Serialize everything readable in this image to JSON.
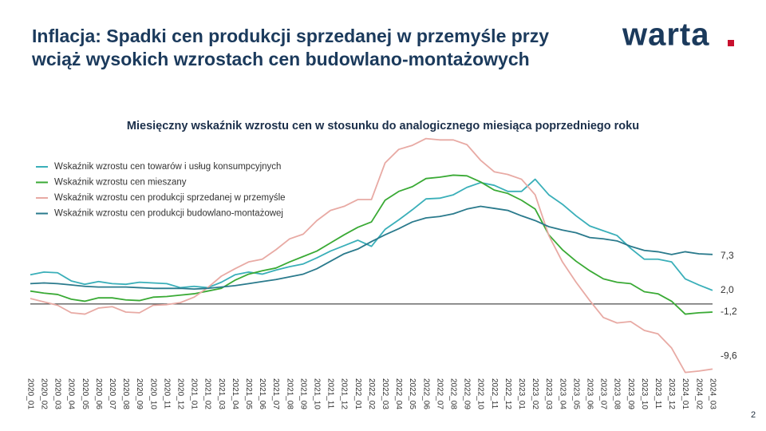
{
  "header": {
    "title_lines": [
      "Inflacja: Spadki cen produkcji sprzedanej w przemyśle przy",
      "wciąż wysokich wzrostach cen budowlano-montażowych"
    ],
    "logo": "warta"
  },
  "footer": {
    "page": "2"
  },
  "chart_data": {
    "type": "line",
    "title": "Miesięczny wskaźnik wzrostu cen w stosunku do analogicznego miesiąca poprzedniego roku",
    "categories": [
      "2020_01",
      "2020_02",
      "2020_03",
      "2020_04",
      "2020_05",
      "2020_06",
      "2020_07",
      "2020_08",
      "2020_09",
      "2020_10",
      "2020_11",
      "2020_12",
      "2021_01",
      "2021_02",
      "2021_03",
      "2021_04",
      "2021_05",
      "2021_06",
      "2021_07",
      "2021_08",
      "2021_09",
      "2021_10",
      "2021_11",
      "2021_12",
      "2022_01",
      "2022_02",
      "2022_03",
      "2022_04",
      "2022_05",
      "2022_06",
      "2022_07",
      "2022_08",
      "2022_09",
      "2022_10",
      "2022_11",
      "2022_12",
      "2023_01",
      "2023_02",
      "2023_03",
      "2023_04",
      "2023_05",
      "2023_06",
      "2023_07",
      "2023_08",
      "2023_09",
      "2023_10",
      "2023_11",
      "2023_12",
      "2024_01",
      "2024_02",
      "2024_03"
    ],
    "ylim": [
      -10.5,
      26
    ],
    "series": [
      {
        "name": "Wskaźnik wzrostu cen towarów i usług konsumpcyjnych",
        "color": "#3aafb9",
        "values": [
          4.3,
          4.7,
          4.6,
          3.4,
          2.9,
          3.3,
          3.0,
          2.9,
          3.2,
          3.1,
          3.0,
          2.4,
          2.6,
          2.4,
          3.2,
          4.3,
          4.7,
          4.4,
          5.0,
          5.5,
          5.9,
          6.8,
          7.8,
          8.6,
          9.4,
          8.5,
          11.0,
          12.4,
          13.9,
          15.5,
          15.6,
          16.1,
          17.2,
          17.9,
          17.5,
          16.6,
          16.6,
          18.4,
          16.1,
          14.7,
          13.0,
          11.5,
          10.8,
          10.1,
          8.2,
          6.6,
          6.6,
          6.2,
          3.7,
          2.8,
          2.0
        ],
        "value_labels": [
          null,
          null,
          null,
          null,
          null,
          null,
          null,
          null,
          null,
          null,
          null,
          null,
          null,
          null,
          null,
          null,
          null,
          null,
          null,
          null,
          null,
          null,
          null,
          null,
          null,
          null,
          null,
          null,
          null,
          null,
          null,
          null,
          null,
          null,
          null,
          null,
          null,
          null,
          null,
          null,
          null,
          null,
          null,
          null,
          null,
          null,
          null,
          null,
          null,
          null,
          "2,0"
        ]
      },
      {
        "name": "Wskaźnik wzrostu cen mieszany",
        "color": "#3aaa35",
        "values": [
          1.9,
          1.6,
          1.4,
          0.7,
          0.4,
          0.9,
          0.9,
          0.6,
          0.5,
          1.0,
          1.1,
          1.3,
          1.5,
          1.9,
          2.3,
          3.5,
          4.4,
          4.9,
          5.3,
          6.2,
          7.0,
          7.8,
          9.0,
          10.2,
          11.3,
          12.1,
          15.3,
          16.6,
          17.3,
          18.5,
          18.7,
          19.0,
          18.9,
          18.0,
          16.8,
          16.3,
          15.3,
          14.0,
          10.2,
          8.0,
          6.3,
          4.9,
          3.7,
          3.2,
          3.0,
          1.8,
          1.5,
          0.4,
          -1.5,
          -1.3,
          -1.2
        ],
        "value_labels": [
          null,
          null,
          null,
          null,
          null,
          null,
          null,
          null,
          null,
          null,
          null,
          null,
          null,
          null,
          null,
          null,
          null,
          null,
          null,
          null,
          null,
          null,
          null,
          null,
          null,
          null,
          null,
          null,
          null,
          null,
          null,
          null,
          null,
          null,
          null,
          null,
          null,
          null,
          null,
          null,
          null,
          null,
          null,
          null,
          null,
          null,
          null,
          null,
          null,
          null,
          "-1,2"
        ]
      },
      {
        "name": "Wskaźnik wzrostu cen produkcji sprzedanej w przemyśle",
        "color": "#e8aaa4",
        "values": [
          0.8,
          0.3,
          -0.2,
          -1.3,
          -1.5,
          -0.6,
          -0.4,
          -1.2,
          -1.3,
          -0.2,
          -0.1,
          0.2,
          1.0,
          2.4,
          4.1,
          5.2,
          6.2,
          6.6,
          8.0,
          9.6,
          10.3,
          12.3,
          13.8,
          14.4,
          15.4,
          15.4,
          20.8,
          22.8,
          23.4,
          24.4,
          24.2,
          24.2,
          23.5,
          21.2,
          19.5,
          19.1,
          18.4,
          16.1,
          10.1,
          6.2,
          3.2,
          0.5,
          -2.0,
          -2.8,
          -2.6,
          -3.9,
          -4.4,
          -6.5,
          -10.1,
          -9.9,
          -9.6
        ],
        "value_labels": [
          null,
          null,
          null,
          null,
          null,
          null,
          null,
          null,
          null,
          null,
          null,
          null,
          null,
          null,
          null,
          null,
          null,
          null,
          null,
          null,
          null,
          null,
          null,
          null,
          null,
          null,
          null,
          null,
          null,
          null,
          null,
          null,
          null,
          null,
          null,
          null,
          null,
          null,
          null,
          null,
          null,
          null,
          null,
          null,
          null,
          null,
          null,
          null,
          null,
          null,
          "-9,6"
        ]
      },
      {
        "name": "Wskaźnik wzrostu cen produkcji budowlano-montażowej",
        "color": "#2a7a8c",
        "values": [
          3.0,
          3.1,
          3.0,
          2.8,
          2.6,
          2.5,
          2.5,
          2.5,
          2.4,
          2.3,
          2.3,
          2.3,
          2.2,
          2.3,
          2.5,
          2.7,
          3.0,
          3.3,
          3.6,
          4.0,
          4.4,
          5.2,
          6.3,
          7.4,
          8.1,
          9.2,
          10.2,
          11.1,
          12.1,
          12.7,
          12.9,
          13.3,
          14.0,
          14.4,
          14.1,
          13.8,
          13.0,
          12.3,
          11.4,
          10.9,
          10.5,
          9.8,
          9.6,
          9.3,
          8.5,
          7.9,
          7.7,
          7.3,
          7.7,
          7.4,
          7.3
        ],
        "value_labels": [
          null,
          null,
          null,
          null,
          null,
          null,
          null,
          null,
          null,
          null,
          null,
          null,
          null,
          null,
          null,
          null,
          null,
          null,
          null,
          null,
          null,
          null,
          null,
          null,
          null,
          null,
          null,
          null,
          null,
          null,
          null,
          null,
          null,
          null,
          null,
          null,
          null,
          null,
          null,
          null,
          null,
          null,
          null,
          null,
          null,
          null,
          null,
          null,
          null,
          null,
          "7,3"
        ]
      }
    ]
  }
}
